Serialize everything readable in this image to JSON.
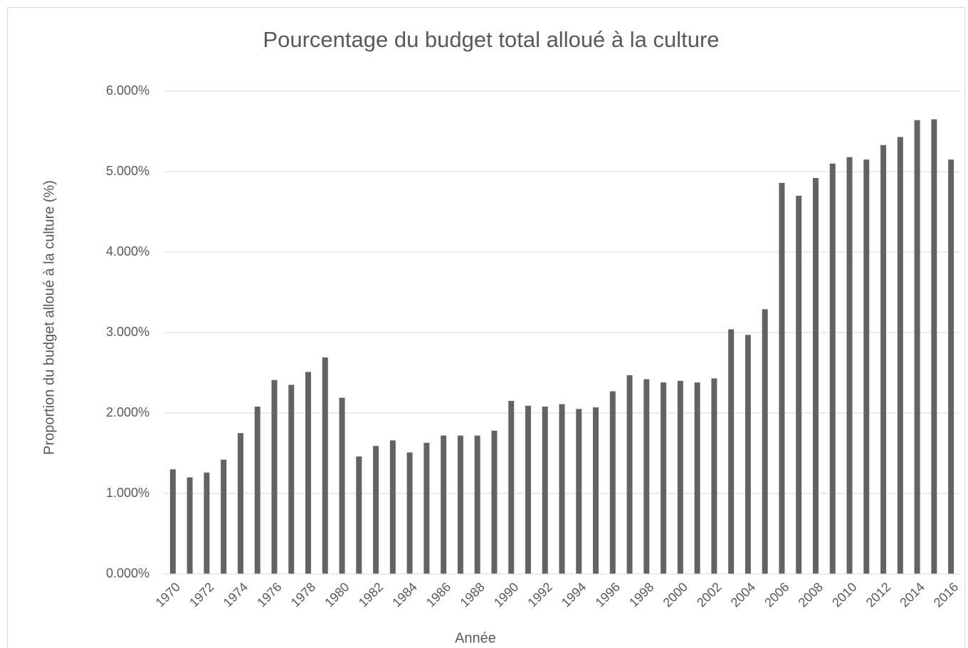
{
  "chart_data": {
    "type": "bar",
    "title": "Pourcentage du budget total alloué à la culture",
    "x_label": "Année",
    "y_label": "Proportion du budget alloué à la culture (%)",
    "categories": [
      "1970",
      null,
      "1972",
      null,
      "1974",
      null,
      "1976",
      null,
      "1978",
      null,
      "1980",
      null,
      "1982",
      null,
      "1984",
      null,
      "1986",
      null,
      "1988",
      null,
      "1990",
      null,
      "1992",
      null,
      "1994",
      null,
      "1996",
      null,
      "1998",
      null,
      "2000",
      null,
      "2002",
      null,
      "2004",
      null,
      "2006",
      null,
      "2008",
      null,
      "2010",
      null,
      "2012",
      null,
      "2014",
      null,
      "2016"
    ],
    "values": [
      1.3,
      1.2,
      1.26,
      1.42,
      1.75,
      2.08,
      2.41,
      2.35,
      2.51,
      2.69,
      2.19,
      1.46,
      1.59,
      1.66,
      1.51,
      1.63,
      1.72,
      1.72,
      1.72,
      1.78,
      2.15,
      2.09,
      2.08,
      2.11,
      2.05,
      2.07,
      2.27,
      2.47,
      2.42,
      2.38,
      2.4,
      2.38,
      2.43,
      3.04,
      2.97,
      3.29,
      4.86,
      4.7,
      4.92,
      5.1,
      5.18,
      5.15,
      5.33,
      5.43,
      5.64,
      5.65,
      5.15
    ],
    "color": "#636363",
    "ylim": [
      0,
      6
    ],
    "yticks": [
      {
        "value": 0,
        "label": "0.000%"
      },
      {
        "value": 1,
        "label": "1.000%"
      },
      {
        "value": 2,
        "label": "2.000%"
      },
      {
        "value": 3,
        "label": "3.000%"
      },
      {
        "value": 4,
        "label": "4.000%"
      },
      {
        "value": 5,
        "label": "5.000%"
      },
      {
        "value": 6,
        "label": "6.000%"
      }
    ],
    "grid": true
  }
}
